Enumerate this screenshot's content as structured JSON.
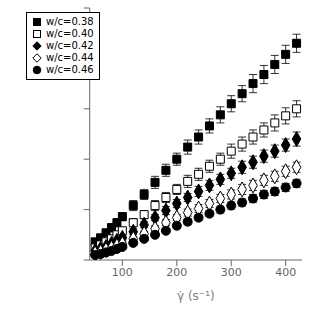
{
  "chart_data": {
    "type": "scatter",
    "xlabel": "γ̇  (s⁻¹)",
    "xlim": [
      40,
      430
    ],
    "xticks": [
      100,
      200,
      300,
      400
    ],
    "ylim": [
      0,
      250
    ],
    "yticks": [
      0,
      50,
      100,
      150,
      200,
      250
    ],
    "tick_labels": "x",
    "grid": false,
    "legend": "upper left",
    "series": [
      {
        "name": "w/c=0.38",
        "color": "#000000",
        "marker": "square",
        "x": [
          50,
          60,
          70,
          80,
          90,
          100,
          120,
          140,
          160,
          180,
          200,
          220,
          240,
          260,
          280,
          300,
          320,
          340,
          360,
          380,
          400,
          420
        ],
        "values": [
          18,
          22,
          27,
          32,
          37,
          43,
          54,
          65,
          77,
          89,
          100,
          112,
          122,
          133,
          144,
          155,
          165,
          175,
          184,
          194,
          204,
          215
        ],
        "yerr": [
          3,
          3,
          3,
          4,
          4,
          4,
          5,
          5,
          6,
          6,
          6,
          7,
          7,
          7,
          8,
          8,
          8,
          9,
          9,
          9,
          9,
          9
        ]
      },
      {
        "name": "w/c=0.40",
        "color": "#000000",
        "marker": "open-square",
        "x": [
          50,
          60,
          70,
          80,
          90,
          100,
          120,
          140,
          160,
          180,
          200,
          220,
          240,
          260,
          280,
          300,
          320,
          340,
          360,
          380,
          400,
          420
        ],
        "values": [
          12,
          15,
          18,
          21,
          25,
          29,
          37,
          45,
          54,
          62,
          70,
          78,
          85,
          93,
          100,
          108,
          115,
          122,
          129,
          136,
          143,
          150
        ],
        "yerr": [
          2,
          2,
          2,
          3,
          3,
          3,
          4,
          4,
          5,
          5,
          5,
          6,
          6,
          6,
          6,
          7,
          7,
          7,
          7,
          8,
          8,
          8
        ]
      },
      {
        "name": "w/c=0.42",
        "color": "#000000",
        "marker": "diamond",
        "x": [
          50,
          60,
          70,
          80,
          90,
          100,
          120,
          140,
          160,
          180,
          200,
          220,
          240,
          260,
          280,
          300,
          320,
          340,
          360,
          380,
          400,
          420
        ],
        "values": [
          9,
          11,
          13,
          16,
          19,
          22,
          28,
          35,
          42,
          49,
          56,
          62,
          68,
          74,
          80,
          86,
          92,
          97,
          103,
          108,
          114,
          120
        ],
        "yerr": [
          1.5,
          1.5,
          2,
          2,
          2,
          2,
          3,
          3,
          3,
          4,
          4,
          4,
          5,
          5,
          5,
          5,
          6,
          6,
          6,
          6,
          6,
          7
        ]
      },
      {
        "name": "w/c=0.44",
        "color": "#000000",
        "marker": "open-diamond",
        "x": [
          50,
          60,
          70,
          80,
          90,
          100,
          120,
          140,
          160,
          180,
          200,
          220,
          240,
          260,
          280,
          300,
          320,
          340,
          360,
          380,
          400,
          420
        ],
        "values": [
          6.5,
          8,
          10,
          12,
          14,
          16,
          21,
          26,
          31,
          37,
          42,
          47,
          51,
          56,
          61,
          65,
          70,
          74,
          79,
          83,
          88,
          92
        ],
        "yerr": [
          1,
          1,
          1.5,
          1.5,
          2,
          2,
          2,
          2.5,
          3,
          3,
          3,
          3.5,
          4,
          4,
          4,
          4.5,
          5,
          5,
          5,
          5,
          5,
          5
        ]
      },
      {
        "name": "w/c=0.46",
        "color": "#000000",
        "marker": "circle",
        "x": [
          50,
          60,
          70,
          80,
          90,
          100,
          120,
          140,
          160,
          180,
          200,
          220,
          240,
          260,
          280,
          300,
          320,
          340,
          360,
          380,
          400,
          420
        ],
        "values": [
          5,
          6,
          7.5,
          9,
          11,
          13,
          17,
          21,
          25,
          29,
          34,
          38,
          42,
          46,
          50,
          54,
          57,
          61,
          65,
          68,
          72,
          76
        ],
        "yerr": [
          0.8,
          0.8,
          1,
          1,
          1.2,
          1.5,
          1.5,
          2,
          2,
          2.5,
          2.5,
          3,
          3,
          3,
          3.5,
          3.5,
          3.5,
          4,
          4,
          4,
          4,
          4
        ]
      }
    ]
  }
}
